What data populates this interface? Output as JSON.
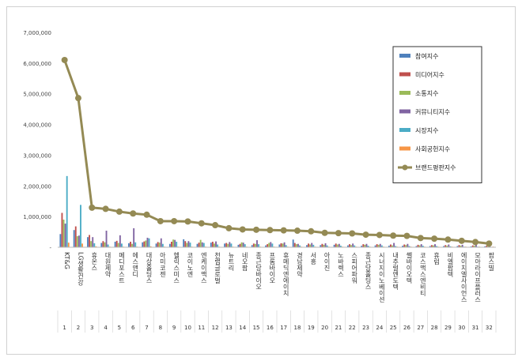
{
  "chart_data": {
    "type": "bar",
    "title": "",
    "xlabel": "",
    "ylabel": "",
    "ylim": [
      0,
      7000000
    ],
    "yticks": [
      "-",
      "1,000,000",
      "2,000,000",
      "3,000,000",
      "4,000,000",
      "5,000,000",
      "6,000,000",
      "7,000,000"
    ],
    "grid": false,
    "legend_position": "top-right",
    "categories": [
      "KT&G",
      "LG생활건강",
      "휴온스",
      "대원제약",
      "메디포스트",
      "에스앤디",
      "대상홀딩스",
      "아미코젠",
      "헬릭스미스",
      "코이노엔",
      "엔케이맥스",
      "천랩글로벌",
      "뉴트리",
      "네오팜",
      "종근당바이오",
      "프롬바이오",
      "휴메딕엔에이치",
      "경남제약",
      "서흥",
      "아이진",
      "노바렉스",
      "스피어파워",
      "종근당홀딩스",
      "시너지이노베이션",
      "내추럴엔도텍",
      "쎌바이오텍",
      "코스맥스엔비티",
      "휴럼",
      "비엘팜텍",
      "에이치엘사이언스",
      "모아라이프플러스",
      "팜스빌"
    ],
    "rank_labels": [
      "1",
      "2",
      "3",
      "4",
      "5",
      "6",
      "7",
      "8",
      "9",
      "10",
      "11",
      "12",
      "13",
      "14",
      "15",
      "16",
      "17",
      "18",
      "19",
      "20",
      "21",
      "22",
      "23",
      "24",
      "25",
      "26",
      "27",
      "28",
      "29",
      "30",
      "31",
      "32"
    ],
    "series": [
      {
        "name": "참여지수",
        "color": "#4f81bd",
        "kind": "bar",
        "values": [
          430000,
          560000,
          330000,
          140000,
          180000,
          130000,
          160000,
          120000,
          110000,
          260000,
          110000,
          150000,
          120000,
          80000,
          70000,
          60000,
          90000,
          250000,
          70000,
          70000,
          80000,
          60000,
          50000,
          60000,
          50000,
          50000,
          40000,
          40000,
          40000,
          40000,
          30000,
          30000
        ]
      },
      {
        "name": "미디어지수",
        "color": "#c0504d",
        "kind": "bar",
        "values": [
          1120000,
          680000,
          400000,
          200000,
          210000,
          180000,
          190000,
          170000,
          180000,
          200000,
          150000,
          180000,
          140000,
          110000,
          120000,
          100000,
          130000,
          140000,
          120000,
          110000,
          120000,
          100000,
          100000,
          100000,
          90000,
          90000,
          80000,
          70000,
          70000,
          70000,
          60000,
          50000
        ]
      },
      {
        "name": "소통지수",
        "color": "#9bbb59",
        "kind": "bar",
        "values": [
          900000,
          360000,
          200000,
          160000,
          140000,
          110000,
          220000,
          150000,
          250000,
          140000,
          240000,
          120000,
          110000,
          160000,
          110000,
          140000,
          120000,
          100000,
          90000,
          80000,
          90000,
          70000,
          80000,
          80000,
          60000,
          70000,
          60000,
          60000,
          50000,
          50000,
          50000,
          40000
        ]
      },
      {
        "name": "커뮤니티지수",
        "color": "#8064a2",
        "kind": "bar",
        "values": [
          770000,
          380000,
          330000,
          540000,
          390000,
          620000,
          310000,
          290000,
          240000,
          200000,
          160000,
          190000,
          170000,
          150000,
          230000,
          170000,
          160000,
          110000,
          140000,
          130000,
          110000,
          120000,
          110000,
          110000,
          140000,
          110000,
          100000,
          100000,
          90000,
          80000,
          80000,
          60000
        ]
      },
      {
        "name": "시장지수",
        "color": "#4bacc6",
        "kind": "bar",
        "values": [
          2320000,
          1380000,
          130000,
          90000,
          120000,
          160000,
          290000,
          110000,
          180000,
          150000,
          140000,
          90000,
          120000,
          100000,
          100000,
          120000,
          70000,
          60000,
          80000,
          60000,
          50000,
          60000,
          50000,
          60000,
          40000,
          40000,
          50000,
          40000,
          30000,
          20000,
          20000,
          10000
        ]
      },
      {
        "name": "사회공헌지수",
        "color": "#f79646",
        "kind": "bar",
        "values": [
          150000,
          120000,
          30000,
          20000,
          20000,
          20000,
          30000,
          20000,
          20000,
          20000,
          20000,
          20000,
          20000,
          20000,
          20000,
          20000,
          20000,
          20000,
          20000,
          20000,
          20000,
          20000,
          20000,
          20000,
          20000,
          20000,
          20000,
          20000,
          20000,
          20000,
          20000,
          20000
        ]
      },
      {
        "name": "브랜드평판지수",
        "color": "#948a54",
        "kind": "line",
        "values": [
          6100000,
          4860000,
          1290000,
          1250000,
          1160000,
          1100000,
          1060000,
          850000,
          850000,
          840000,
          780000,
          720000,
          620000,
          580000,
          570000,
          560000,
          550000,
          540000,
          520000,
          470000,
          460000,
          450000,
          410000,
          400000,
          380000,
          370000,
          300000,
          280000,
          250000,
          210000,
          170000,
          120000
        ]
      }
    ]
  }
}
